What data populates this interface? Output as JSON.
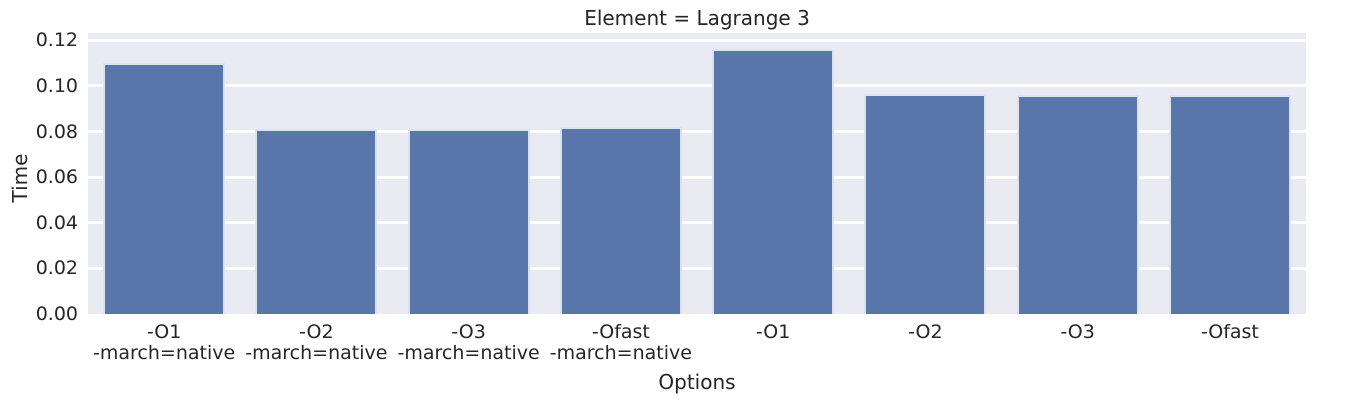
{
  "chart_data": {
    "type": "bar",
    "title": "Element = Lagrange 3",
    "xlabel": "Options",
    "ylabel": "Time",
    "categories": [
      "-O1\n-march=native",
      "-O2\n-march=native",
      "-O3\n-march=native",
      "-Ofast\n-march=native",
      "-O1",
      "-O2",
      "-O3",
      "-Ofast"
    ],
    "values": [
      0.11,
      0.081,
      0.081,
      0.082,
      0.116,
      0.0965,
      0.096,
      0.096
    ],
    "yticks": [
      0.0,
      0.02,
      0.04,
      0.06,
      0.08,
      0.1,
      0.12
    ],
    "ytick_labels": [
      "0.00",
      "0.02",
      "0.04",
      "0.06",
      "0.08",
      "0.10",
      "0.12"
    ],
    "ylim": [
      0,
      0.1232
    ],
    "grid": true,
    "legend": false,
    "bar_width_fraction": 0.8,
    "colors": {
      "bar": "#5876a9",
      "axes_background": "#eaeaf2",
      "gridline": "#ffffff",
      "text": "#262626",
      "page_background": "#ffffff"
    }
  }
}
